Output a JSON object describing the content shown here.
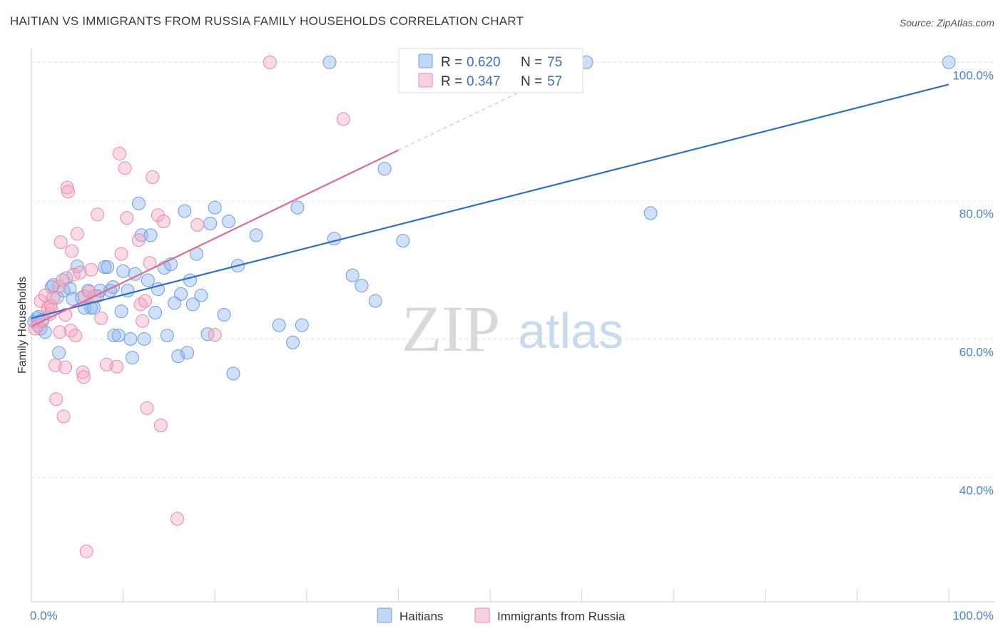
{
  "title": "HAITIAN VS IMMIGRANTS FROM RUSSIA FAMILY HOUSEHOLDS CORRELATION CHART",
  "source": "Source: ZipAtlas.com",
  "watermark": {
    "zip": "ZIP",
    "atlas": "atlas"
  },
  "chart_data": {
    "type": "scatter",
    "title": "HAITIAN VS IMMIGRANTS FROM RUSSIA FAMILY HOUSEHOLDS CORRELATION CHART",
    "xlabel": "",
    "ylabel": "Family Households",
    "xlim": [
      0,
      100
    ],
    "ylim": [
      22,
      102
    ],
    "x_tick_labels": [
      "0.0%",
      "100.0%"
    ],
    "y_ticks": [
      {
        "value": 40,
        "label": "40.0%"
      },
      {
        "value": 60,
        "label": "60.0%"
      },
      {
        "value": 80,
        "label": "80.0%"
      },
      {
        "value": 100,
        "label": "100.0%"
      }
    ],
    "stats_legend": [
      {
        "series": "Haitians",
        "r_label": "R =",
        "r": "0.620",
        "n_label": "N =",
        "n": "75",
        "color": "#8fb6ee"
      },
      {
        "series": "Immigrants from Russia",
        "r_label": "R =",
        "r": "0.347",
        "n_label": "N =",
        "n": "57",
        "color": "#f4a9c1"
      }
    ],
    "series": [
      {
        "name": "Haitians",
        "color": "#8fb6ee",
        "stroke": "#6a9ee0",
        "trendline": {
          "x0": 0,
          "y0": 63.0,
          "x1": 100,
          "y1": 96.8,
          "color": "#2c6fc9"
        },
        "points": [
          [
            0.3,
            62.5
          ],
          [
            0.6,
            63.0
          ],
          [
            0.8,
            63.2
          ],
          [
            1.0,
            61.5
          ],
          [
            1.2,
            62.8
          ],
          [
            1.5,
            61.0
          ],
          [
            2.2,
            67.5
          ],
          [
            2.4,
            67.8
          ],
          [
            2.8,
            66.0
          ],
          [
            3.0,
            58.0
          ],
          [
            3.5,
            67.0
          ],
          [
            3.8,
            68.8
          ],
          [
            4.2,
            67.3
          ],
          [
            4.5,
            65.8
          ],
          [
            5.0,
            70.5
          ],
          [
            5.5,
            66.0
          ],
          [
            5.8,
            64.5
          ],
          [
            6.2,
            67.0
          ],
          [
            6.5,
            64.5
          ],
          [
            6.8,
            64.5
          ],
          [
            7.2,
            66.2
          ],
          [
            7.5,
            67.0
          ],
          [
            8.0,
            70.4
          ],
          [
            8.3,
            70.4
          ],
          [
            8.6,
            67.0
          ],
          [
            8.9,
            67.5
          ],
          [
            9.0,
            60.5
          ],
          [
            9.5,
            60.5
          ],
          [
            9.8,
            64.0
          ],
          [
            10.0,
            69.8
          ],
          [
            10.5,
            67.0
          ],
          [
            10.8,
            60.0
          ],
          [
            11.0,
            57.3
          ],
          [
            11.3,
            69.4
          ],
          [
            11.7,
            79.6
          ],
          [
            12.0,
            75.0
          ],
          [
            12.3,
            60.0
          ],
          [
            12.7,
            68.5
          ],
          [
            13.0,
            75.0
          ],
          [
            13.5,
            63.8
          ],
          [
            13.8,
            67.2
          ],
          [
            14.5,
            70.3
          ],
          [
            14.8,
            60.5
          ],
          [
            15.2,
            70.8
          ],
          [
            15.6,
            65.2
          ],
          [
            16.0,
            57.5
          ],
          [
            16.3,
            66.5
          ],
          [
            16.7,
            78.5
          ],
          [
            17.0,
            58.0
          ],
          [
            17.3,
            68.5
          ],
          [
            17.6,
            65.0
          ],
          [
            18.0,
            72.3
          ],
          [
            18.5,
            66.3
          ],
          [
            19.2,
            60.7
          ],
          [
            19.5,
            76.7
          ],
          [
            20.0,
            79.0
          ],
          [
            21.0,
            63.5
          ],
          [
            21.5,
            77.0
          ],
          [
            22.0,
            55.0
          ],
          [
            22.5,
            70.6
          ],
          [
            24.5,
            75.0
          ],
          [
            27.0,
            62.0
          ],
          [
            28.5,
            59.5
          ],
          [
            29.0,
            79.0
          ],
          [
            29.5,
            62.0
          ],
          [
            32.5,
            100.0
          ],
          [
            33.0,
            74.5
          ],
          [
            35.0,
            69.2
          ],
          [
            36.0,
            67.7
          ],
          [
            37.5,
            65.5
          ],
          [
            38.5,
            84.6
          ],
          [
            40.5,
            74.2
          ],
          [
            60.5,
            100.0
          ],
          [
            67.5,
            78.2
          ],
          [
            100.0,
            100.0
          ]
        ]
      },
      {
        "name": "Immigrants from Russia",
        "color": "#f4a9c1",
        "stroke": "#ec86a8",
        "trendline": {
          "x0": 0,
          "y0": 61.8,
          "x1": 40.0,
          "y1": 87.3,
          "dash_x1": 60.0,
          "dash_y1": 100.0,
          "color": "#e06a95"
        },
        "points": [
          [
            0.4,
            61.5
          ],
          [
            0.7,
            62.0
          ],
          [
            1.0,
            65.5
          ],
          [
            1.2,
            62.6
          ],
          [
            1.5,
            66.3
          ],
          [
            1.8,
            64.5
          ],
          [
            2.0,
            63.6
          ],
          [
            2.1,
            64.8
          ],
          [
            2.2,
            64.2
          ],
          [
            2.4,
            66.0
          ],
          [
            2.6,
            56.2
          ],
          [
            2.7,
            51.3
          ],
          [
            3.0,
            67.6
          ],
          [
            3.1,
            61.0
          ],
          [
            3.2,
            74.0
          ],
          [
            3.4,
            68.5
          ],
          [
            3.5,
            48.8
          ],
          [
            3.7,
            55.9
          ],
          [
            3.9,
            81.9
          ],
          [
            4.0,
            81.3
          ],
          [
            4.3,
            61.2
          ],
          [
            4.4,
            72.7
          ],
          [
            4.6,
            69.3
          ],
          [
            4.8,
            60.5
          ],
          [
            5.0,
            75.2
          ],
          [
            5.3,
            69.6
          ],
          [
            5.6,
            55.2
          ],
          [
            5.7,
            54.5
          ],
          [
            5.8,
            66.2
          ],
          [
            6.0,
            29.3
          ],
          [
            6.3,
            66.8
          ],
          [
            6.5,
            70.0
          ],
          [
            6.9,
            66.2
          ],
          [
            7.2,
            78.0
          ],
          [
            7.6,
            63.0
          ],
          [
            8.2,
            56.3
          ],
          [
            9.3,
            56.0
          ],
          [
            9.6,
            86.8
          ],
          [
            9.8,
            72.3
          ],
          [
            10.2,
            84.7
          ],
          [
            10.4,
            77.5
          ],
          [
            11.7,
            74.3
          ],
          [
            11.9,
            65.0
          ],
          [
            12.1,
            62.6
          ],
          [
            12.4,
            65.5
          ],
          [
            12.6,
            50.0
          ],
          [
            12.9,
            71.0
          ],
          [
            13.2,
            83.4
          ],
          [
            13.8,
            77.9
          ],
          [
            14.1,
            47.5
          ],
          [
            14.4,
            77.0
          ],
          [
            15.9,
            34.0
          ],
          [
            18.1,
            76.5
          ],
          [
            20.0,
            60.6
          ],
          [
            26.0,
            100.0
          ],
          [
            34.0,
            91.8
          ],
          [
            3.7,
            63.5
          ]
        ]
      }
    ]
  },
  "bottom_legend": [
    {
      "label": "Haitians",
      "color": "#8fb6ee"
    },
    {
      "label": "Immigrants from Russia",
      "color": "#f4a9c1"
    }
  ]
}
